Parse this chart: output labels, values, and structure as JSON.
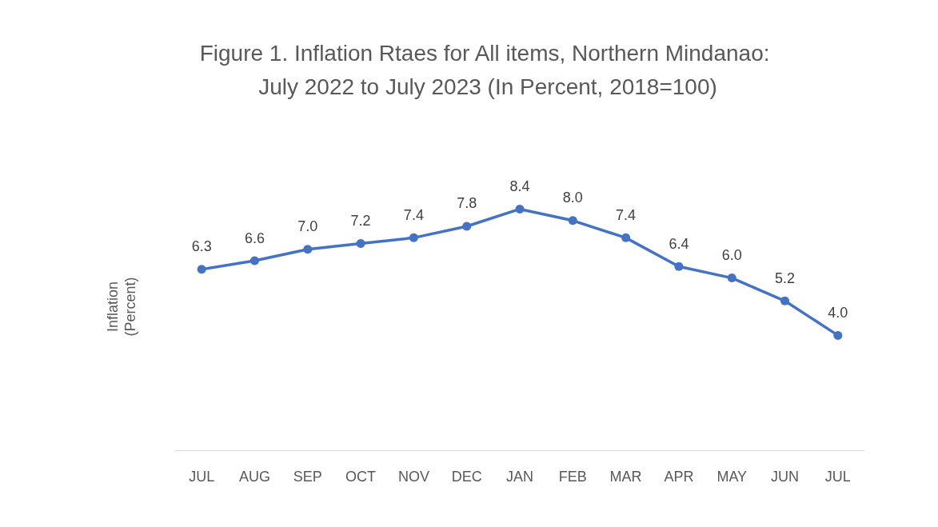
{
  "chart_data": {
    "type": "line",
    "title": "Figure 1. Inflation Rtaes for All items, Northern Mindanao: July 2022 to July 2023 (In Percent, 2018=100)",
    "ylabel": "Inflation (Percent)",
    "categories": [
      "JUL",
      "AUG",
      "SEP",
      "OCT",
      "NOV",
      "DEC",
      "JAN",
      "FEB",
      "MAR",
      "APR",
      "MAY",
      "JUN",
      "JUL"
    ],
    "series": [
      {
        "color": "#4472c4",
        "values": [
          6.3,
          6.6,
          7.0,
          7.2,
          7.4,
          7.8,
          8.4,
          8.0,
          7.4,
          6.4,
          6.0,
          5.2,
          4.0
        ],
        "value_labels": [
          "6.3",
          "6.6",
          "7.0",
          "7.2",
          "7.4",
          "7.8",
          "8.4",
          "8.0",
          "7.4",
          "6.4",
          "6.0",
          "5.2",
          "4.0"
        ]
      }
    ],
    "tick_labels": "x",
    "marker": "circle",
    "line_style": "solid"
  }
}
